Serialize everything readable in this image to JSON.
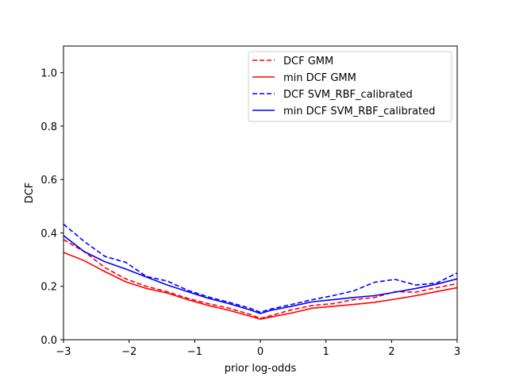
{
  "chart_data": {
    "type": "line",
    "xlabel": "prior log-odds",
    "ylabel": "DCF",
    "xlim": [
      -3,
      3
    ],
    "ylim": [
      0,
      1.1
    ],
    "xticks": [
      -3,
      -2,
      -1,
      0,
      1,
      2,
      3
    ],
    "xtick_labels": [
      "−3",
      "−2",
      "−1",
      "0",
      "1",
      "2",
      "3"
    ],
    "yticks": [
      0.0,
      0.2,
      0.4,
      0.6,
      0.8,
      1.0
    ],
    "ytick_labels": [
      "0.0",
      "0.2",
      "0.4",
      "0.6",
      "0.8",
      "1.0"
    ],
    "grid": false,
    "legend_position": "top-right",
    "x": [
      -3.0,
      -2.684,
      -2.368,
      -2.053,
      -1.737,
      -1.421,
      -1.105,
      -0.789,
      -0.474,
      -0.158,
      0.0,
      0.158,
      0.474,
      0.789,
      1.105,
      1.421,
      1.737,
      2.053,
      2.368,
      2.684,
      3.0
    ],
    "series": [
      {
        "name": "DCF GMM",
        "color": "#ff0000",
        "style": "dashed",
        "values": [
          0.375,
          0.33,
          0.27,
          0.228,
          0.2,
          0.18,
          0.155,
          0.135,
          0.118,
          0.095,
          0.08,
          0.09,
          0.112,
          0.128,
          0.135,
          0.15,
          0.158,
          0.18,
          0.178,
          0.195,
          0.21
        ]
      },
      {
        "name": "min DCF GMM",
        "color": "#ff0000",
        "style": "solid",
        "values": [
          0.327,
          0.296,
          0.255,
          0.217,
          0.192,
          0.175,
          0.15,
          0.128,
          0.11,
          0.088,
          0.077,
          0.085,
          0.1,
          0.118,
          0.125,
          0.132,
          0.14,
          0.152,
          0.165,
          0.18,
          0.195
        ]
      },
      {
        "name": "DCF SVM_RBF_calibrated",
        "color": "#0000ff",
        "style": "dashed",
        "values": [
          0.433,
          0.368,
          0.312,
          0.29,
          0.237,
          0.22,
          0.185,
          0.16,
          0.14,
          0.118,
          0.103,
          0.115,
          0.132,
          0.15,
          0.165,
          0.183,
          0.215,
          0.226,
          0.205,
          0.212,
          0.25
        ]
      },
      {
        "name": "min DCF SVM_RBF_calibrated",
        "color": "#0000ff",
        "style": "solid",
        "values": [
          0.39,
          0.33,
          0.292,
          0.265,
          0.235,
          0.205,
          0.18,
          0.155,
          0.135,
          0.112,
          0.098,
          0.11,
          0.125,
          0.142,
          0.15,
          0.158,
          0.165,
          0.178,
          0.192,
          0.208,
          0.228
        ]
      }
    ]
  }
}
